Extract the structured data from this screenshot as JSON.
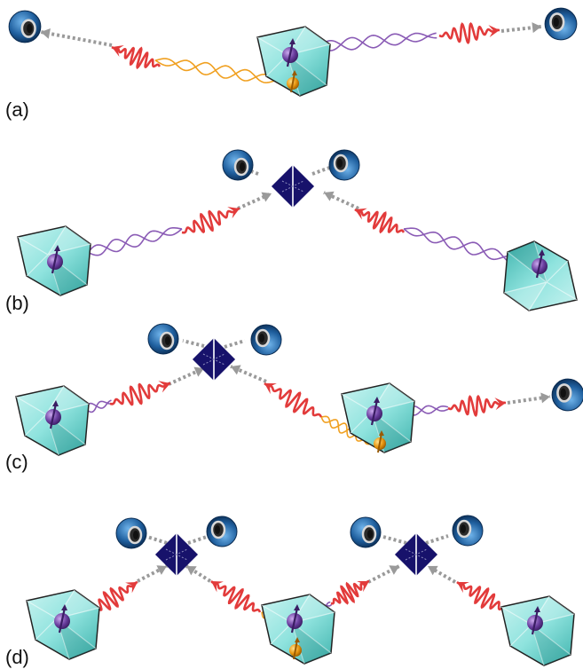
{
  "panels": [
    {
      "label": "(a)"
    },
    {
      "label": "(b)"
    },
    {
      "label": "(c)"
    },
    {
      "label": "(d)"
    }
  ],
  "colors": {
    "crystal": "#8fe3de",
    "crystal_dark": "#3fb3ad",
    "photon": "#e23b3b",
    "electron_spin": "#6b3fa0",
    "nuclear_spin": "#e8960f",
    "splitter": "#17126b",
    "detector": "#1f5f9e",
    "fiber": "#9a9a9a",
    "entangle_electron": "#8a5bb5",
    "entangle_nuclear": "#f0a020"
  },
  "icons": [
    "diamond-crystal-icon",
    "electron-spin-icon",
    "nuclear-spin-icon",
    "photon-wavepacket-icon",
    "beam-splitter-icon",
    "single-photon-detector-icon"
  ]
}
